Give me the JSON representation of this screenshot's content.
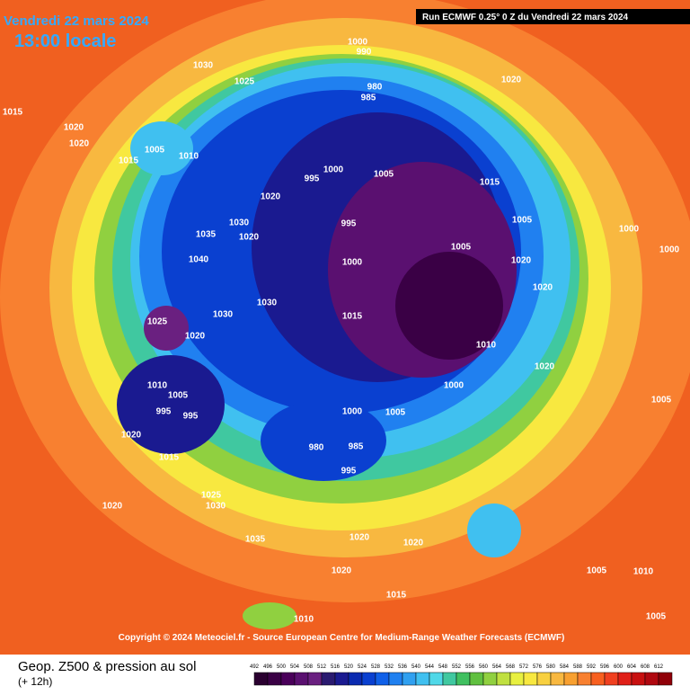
{
  "header": {
    "date": "Vendredi 22 mars 2024",
    "time": "13:00 locale",
    "run": "Run ECMWF 0.25° 0 Z du Vendredi 22 mars 2024"
  },
  "copyright": "Copyright © 2024 Meteociel.fr - Source European Centre for Medium-Range Weather Forecasts (ECMWF)",
  "footer": {
    "title": "Geop. Z500 & pression au sol",
    "lead": "(+ 12h)"
  },
  "legend": {
    "ticks": [
      492,
      496,
      500,
      504,
      508,
      512,
      516,
      520,
      524,
      528,
      532,
      536,
      540,
      544,
      548,
      552,
      556,
      560,
      564,
      568,
      572,
      576,
      580,
      584,
      588,
      592,
      596,
      600,
      604,
      608,
      612
    ],
    "colors": [
      "#2a0030",
      "#3a0045",
      "#4a005a",
      "#5a1070",
      "#6a2080",
      "#2a1a70",
      "#1a1a90",
      "#0a2ab0",
      "#0a40d0",
      "#1060e8",
      "#2080f0",
      "#30a0f0",
      "#40c0f0",
      "#50d8e8",
      "#40c8a0",
      "#40c060",
      "#60c040",
      "#90d040",
      "#c0e040",
      "#e8f040",
      "#f8e840",
      "#f8d040",
      "#f8b840",
      "#f8a030",
      "#f88030",
      "#f86020",
      "#f04020",
      "#e02018",
      "#c81010",
      "#b00810",
      "#900008"
    ]
  },
  "isobars": [
    "1000",
    "990",
    "980",
    "985",
    "1020",
    "1030",
    "1025",
    "1015",
    "1020",
    "1020",
    "1005",
    "1010",
    "1015",
    "995",
    "1000",
    "1005",
    "1015",
    "1020",
    "1035",
    "1040",
    "1030",
    "1020",
    "995",
    "1000",
    "1005",
    "1005",
    "1000",
    "1000",
    "1020",
    "1020",
    "1025",
    "1020",
    "1030",
    "1030",
    "1015",
    "1010",
    "1000",
    "1020",
    "1010",
    "1005",
    "995",
    "995",
    "1020",
    "1015",
    "980",
    "985",
    "995",
    "1000",
    "1005",
    "1020",
    "1035",
    "1030",
    "1025",
    "1020",
    "1020",
    "1020",
    "1015",
    "1010",
    "1005",
    "1010",
    "1005",
    "1005"
  ]
}
